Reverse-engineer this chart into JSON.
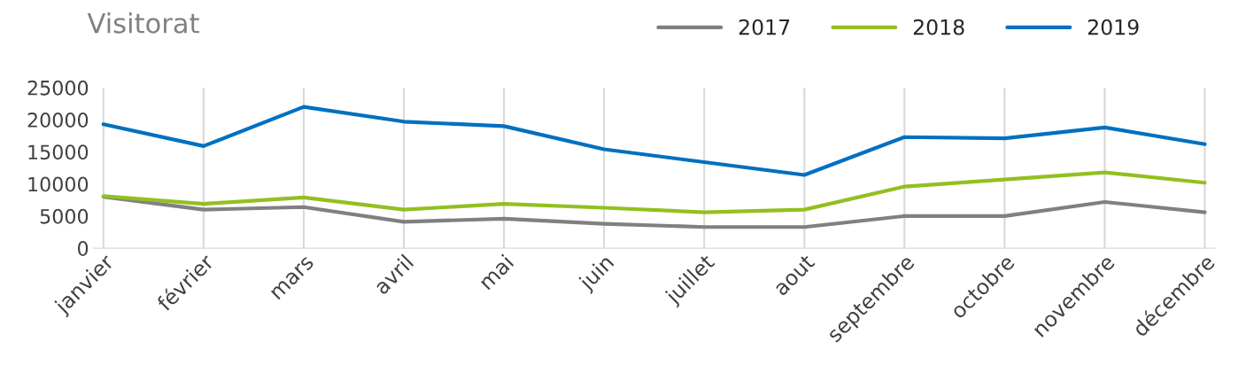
{
  "chart_data": {
    "type": "line",
    "title": "Visitorat",
    "categories": [
      "janvier",
      "février",
      "mars",
      "avril",
      "mai",
      "juin",
      "juillet",
      "aout",
      "septembre",
      "octobre",
      "novembre",
      "décembre"
    ],
    "series": [
      {
        "name": "2017",
        "color": "#808080",
        "values": [
          8000,
          6000,
          6400,
          4100,
          4600,
          3800,
          3300,
          3300,
          5000,
          5000,
          7200,
          5600
        ]
      },
      {
        "name": "2018",
        "color": "#92c01f",
        "values": [
          8100,
          6900,
          7900,
          6000,
          6900,
          6300,
          5600,
          6000,
          9600,
          10700,
          11800,
          10200
        ]
      },
      {
        "name": "2019",
        "color": "#0070c0",
        "values": [
          19300,
          15900,
          22000,
          19700,
          19000,
          15400,
          13400,
          11400,
          17300,
          17100,
          18800,
          16200
        ]
      }
    ],
    "ylim": [
      0,
      25000
    ],
    "yticks": [
      0,
      5000,
      10000,
      15000,
      20000,
      25000
    ],
    "grid": "x",
    "legend": "top right",
    "marker": "none",
    "line_style": "solid"
  }
}
